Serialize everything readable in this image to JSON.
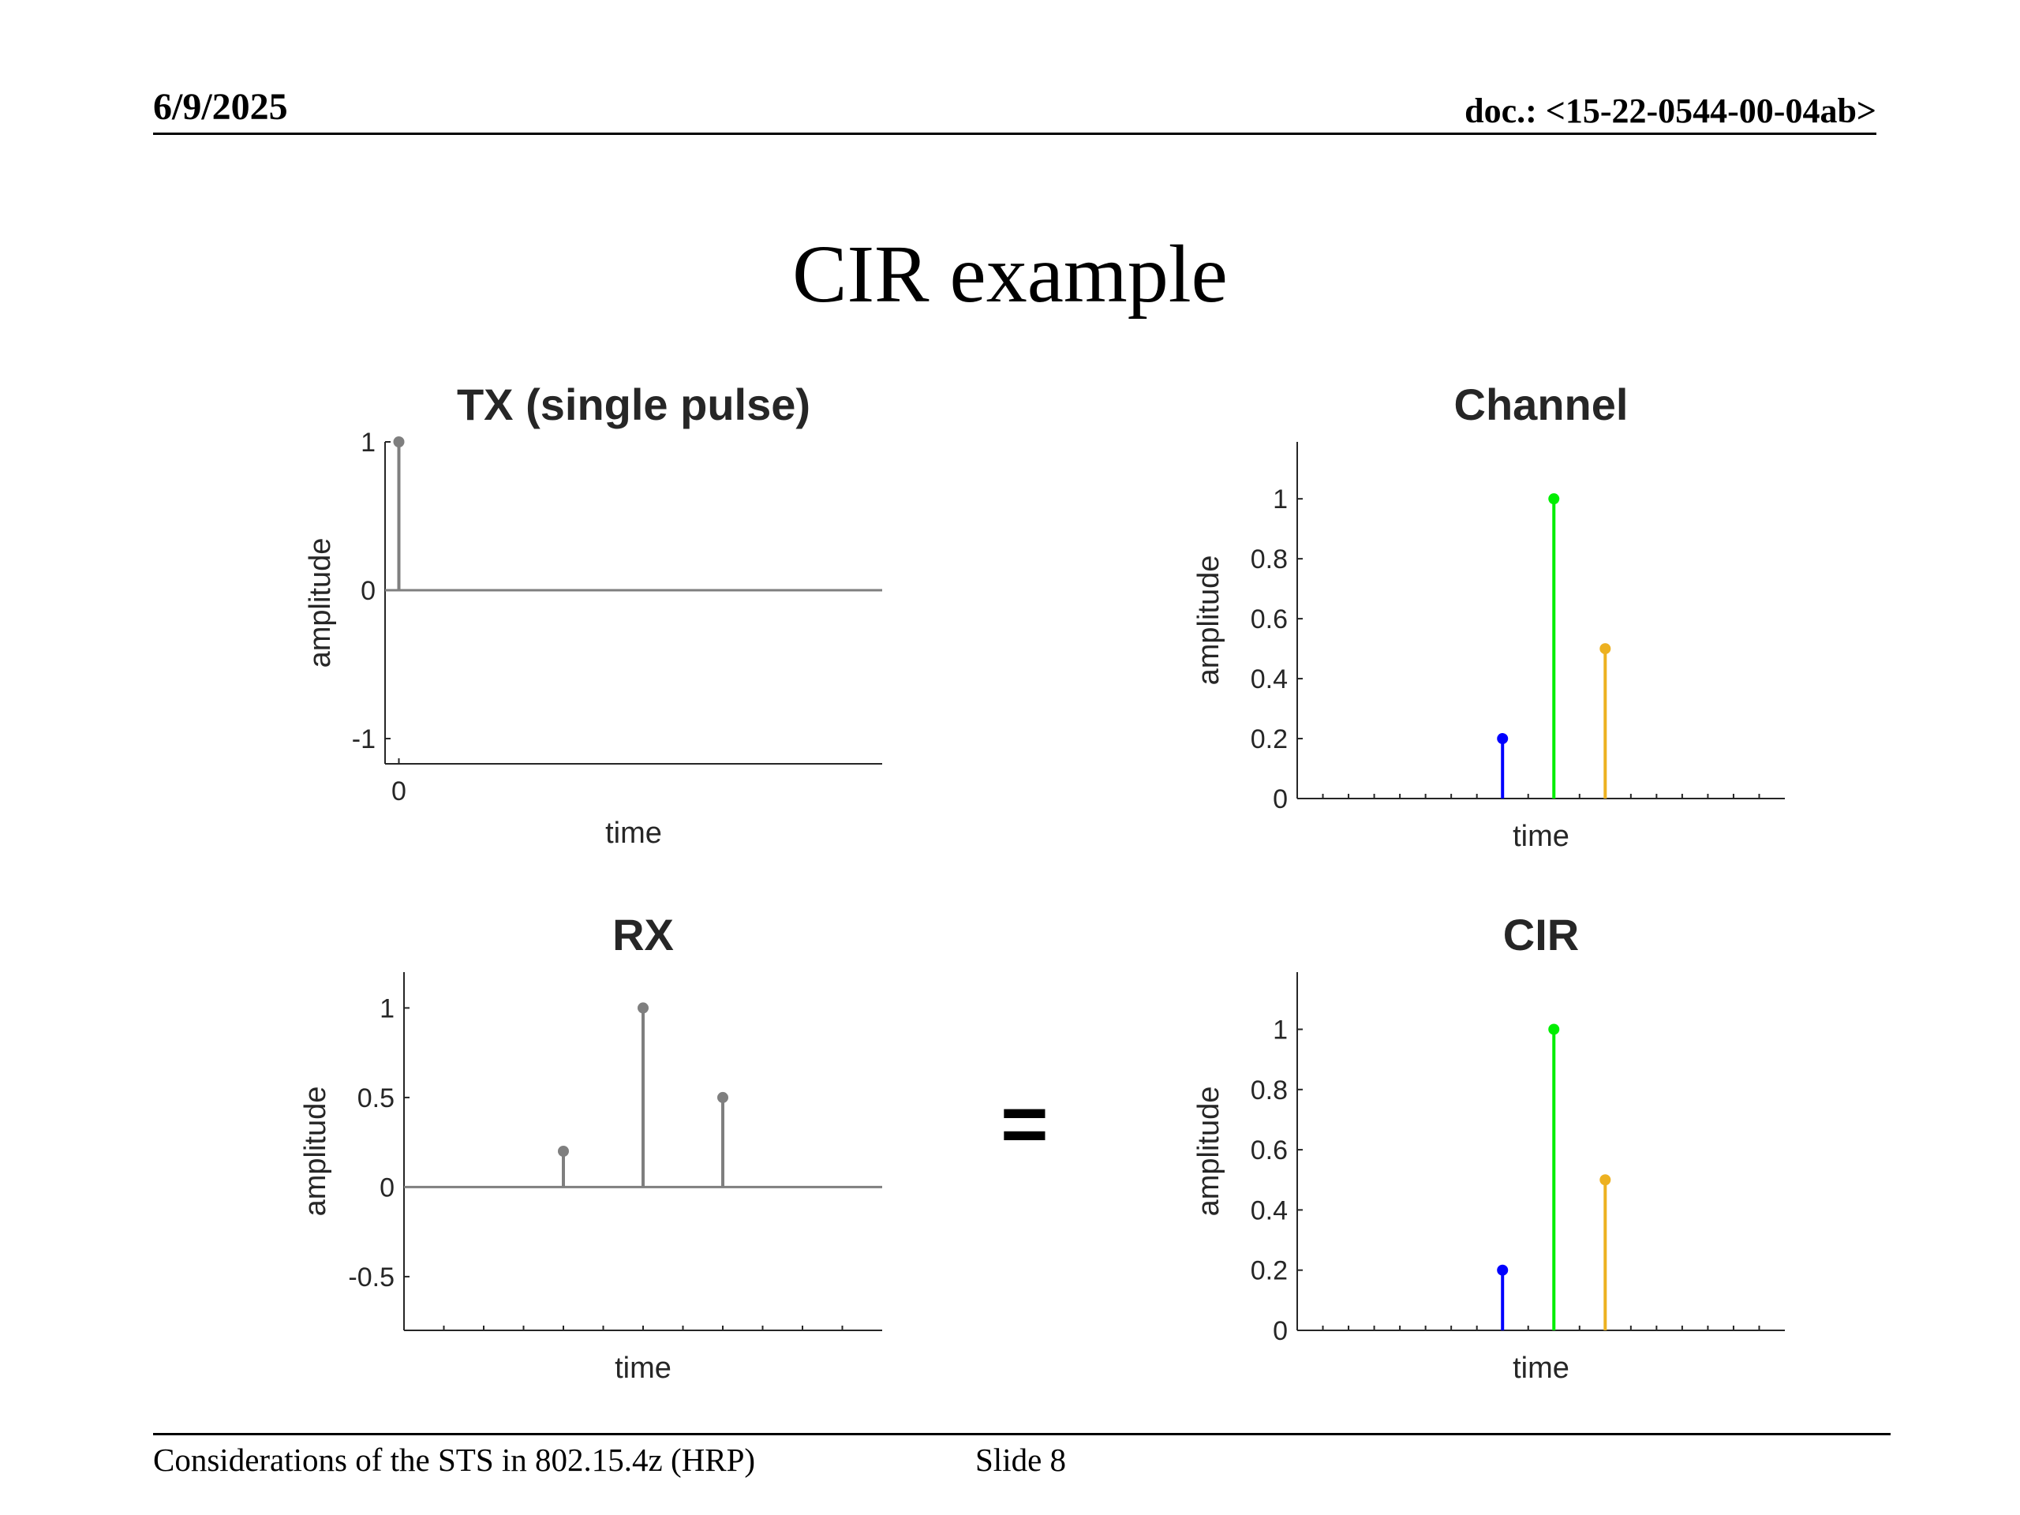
{
  "header": {
    "date": "6/9/2025",
    "doc": "doc.: <15-22-0544-00-04ab>"
  },
  "slide": {
    "title": "CIR example",
    "equals_sign": "="
  },
  "footer": {
    "left": "Considerations of the STS in 802.15.4z (HRP)",
    "slide": "Slide 8"
  },
  "colors": {
    "gray": "#7f7f7f",
    "blue": "#0000ff",
    "green": "#00ee00",
    "orange": "#edb120",
    "axis": "#262626"
  },
  "chart_data": [
    {
      "type": "stem",
      "title": "TX (single pulse)",
      "xlabel": "time",
      "ylabel": "amplitude",
      "xlim": [
        -0.5,
        17.5
      ],
      "ylim": [
        -1.17,
        1.0
      ],
      "yticks": [
        -1,
        0,
        1
      ],
      "ytick_labels": [
        "-1",
        "0",
        "1"
      ],
      "xticks": [
        0
      ],
      "xtick_labels": [
        "0"
      ],
      "baseline": 0,
      "stems": [
        {
          "x": 0,
          "y": 1,
          "color": "#7f7f7f"
        }
      ]
    },
    {
      "type": "stem",
      "title": "Channel",
      "xlabel": "time",
      "ylabel": "amplitude",
      "xlim": [
        0,
        19
      ],
      "ylim": [
        0,
        1.19
      ],
      "yticks": [
        0,
        0.2,
        0.4,
        0.6,
        0.8,
        1
      ],
      "ytick_labels": [
        "0",
        "0.2",
        "0.4",
        "0.6",
        "0.8",
        "1"
      ],
      "minor_xticks": true,
      "baseline": 0,
      "stems": [
        {
          "x": 8,
          "y": 0.2,
          "color": "#0000ff"
        },
        {
          "x": 10,
          "y": 1,
          "color": "#00ee00"
        },
        {
          "x": 12,
          "y": 0.5,
          "color": "#edb120"
        }
      ]
    },
    {
      "type": "stem",
      "title": "RX",
      "xlabel": "time",
      "ylabel": "amplitude",
      "xlim": [
        0,
        12
      ],
      "ylim": [
        -0.8,
        1.2
      ],
      "yticks": [
        -0.5,
        0,
        0.5,
        1
      ],
      "ytick_labels": [
        "-0.5",
        "0",
        "0.5",
        "1"
      ],
      "minor_xticks": true,
      "baseline": 0,
      "stems": [
        {
          "x": 4,
          "y": 0.2,
          "color": "#7f7f7f"
        },
        {
          "x": 6,
          "y": 1,
          "color": "#7f7f7f"
        },
        {
          "x": 8,
          "y": 0.5,
          "color": "#7f7f7f"
        }
      ]
    },
    {
      "type": "stem",
      "title": "CIR",
      "xlabel": "time",
      "ylabel": "amplitude",
      "xlim": [
        0,
        19
      ],
      "ylim": [
        0,
        1.19
      ],
      "yticks": [
        0,
        0.2,
        0.4,
        0.6,
        0.8,
        1
      ],
      "ytick_labels": [
        "0",
        "0.2",
        "0.4",
        "0.6",
        "0.8",
        "1"
      ],
      "minor_xticks": true,
      "baseline": 0,
      "stems": [
        {
          "x": 8,
          "y": 0.2,
          "color": "#0000ff"
        },
        {
          "x": 10,
          "y": 1,
          "color": "#00ee00"
        },
        {
          "x": 12,
          "y": 0.5,
          "color": "#edb120"
        }
      ]
    }
  ]
}
